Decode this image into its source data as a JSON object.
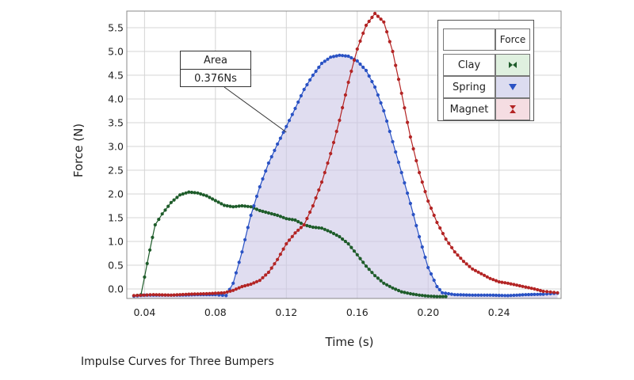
{
  "chart_data": {
    "type": "line",
    "xlabel": "Time (s)",
    "ylabel": "Force (N)",
    "caption": "Impulse Curves for Three Bumpers",
    "xlim": [
      0.03,
      0.275
    ],
    "ylim": [
      -0.2,
      5.85
    ],
    "x_ticks": [
      "0.04",
      "0.08",
      "0.12",
      "0.16",
      "0.20",
      "0.24"
    ],
    "x_tick_values": [
      0.04,
      0.08,
      0.12,
      0.16,
      0.2,
      0.24
    ],
    "y_ticks": [
      "0.0",
      "0.5",
      "1.0",
      "1.5",
      "2.0",
      "2.5",
      "3.0",
      "3.5",
      "4.0",
      "4.5",
      "5.0",
      "5.5"
    ],
    "y_tick_values": [
      0,
      0.5,
      1,
      1.5,
      2,
      2.5,
      3,
      3.5,
      4,
      4.5,
      5,
      5.5
    ],
    "grid": true,
    "legend_position": "top-right",
    "legend_header": "Force",
    "annotation": {
      "label": "Area",
      "value": "0.376Ns",
      "target": [
        0.12,
        3.3
      ]
    },
    "shaded_series": "Spring",
    "series": [
      {
        "name": "Clay",
        "color": "#1e5c2a",
        "legend_fill": "#dff0df",
        "marker": "circle",
        "points": [
          [
            0.034,
            -0.15
          ],
          [
            0.038,
            -0.12
          ],
          [
            0.04,
            0.25
          ],
          [
            0.043,
            0.82
          ],
          [
            0.046,
            1.35
          ],
          [
            0.05,
            1.58
          ],
          [
            0.055,
            1.82
          ],
          [
            0.06,
            1.98
          ],
          [
            0.065,
            2.04
          ],
          [
            0.07,
            2.02
          ],
          [
            0.075,
            1.96
          ],
          [
            0.08,
            1.86
          ],
          [
            0.085,
            1.76
          ],
          [
            0.09,
            1.73
          ],
          [
            0.095,
            1.75
          ],
          [
            0.1,
            1.73
          ],
          [
            0.105,
            1.65
          ],
          [
            0.11,
            1.6
          ],
          [
            0.115,
            1.55
          ],
          [
            0.12,
            1.48
          ],
          [
            0.125,
            1.45
          ],
          [
            0.13,
            1.35
          ],
          [
            0.135,
            1.3
          ],
          [
            0.14,
            1.28
          ],
          [
            0.145,
            1.2
          ],
          [
            0.15,
            1.1
          ],
          [
            0.155,
            0.95
          ],
          [
            0.16,
            0.72
          ],
          [
            0.165,
            0.48
          ],
          [
            0.17,
            0.28
          ],
          [
            0.175,
            0.12
          ],
          [
            0.18,
            0.02
          ],
          [
            0.185,
            -0.06
          ],
          [
            0.19,
            -0.1
          ],
          [
            0.195,
            -0.13
          ],
          [
            0.2,
            -0.15
          ],
          [
            0.205,
            -0.16
          ],
          [
            0.21,
            -0.16
          ]
        ]
      },
      {
        "name": "Spring",
        "color": "#2a52c4",
        "legend_fill": "#dcdcf0",
        "marker": "triangle",
        "points": [
          [
            0.034,
            -0.15
          ],
          [
            0.04,
            -0.13
          ],
          [
            0.05,
            -0.13
          ],
          [
            0.06,
            -0.13
          ],
          [
            0.07,
            -0.12
          ],
          [
            0.08,
            -0.12
          ],
          [
            0.086,
            -0.14
          ],
          [
            0.09,
            0.12
          ],
          [
            0.095,
            0.78
          ],
          [
            0.1,
            1.55
          ],
          [
            0.105,
            2.15
          ],
          [
            0.11,
            2.65
          ],
          [
            0.115,
            3.05
          ],
          [
            0.12,
            3.42
          ],
          [
            0.125,
            3.8
          ],
          [
            0.13,
            4.2
          ],
          [
            0.135,
            4.5
          ],
          [
            0.14,
            4.75
          ],
          [
            0.145,
            4.88
          ],
          [
            0.15,
            4.92
          ],
          [
            0.155,
            4.9
          ],
          [
            0.16,
            4.8
          ],
          [
            0.165,
            4.6
          ],
          [
            0.17,
            4.25
          ],
          [
            0.175,
            3.75
          ],
          [
            0.18,
            3.1
          ],
          [
            0.185,
            2.45
          ],
          [
            0.19,
            1.8
          ],
          [
            0.195,
            1.1
          ],
          [
            0.2,
            0.45
          ],
          [
            0.205,
            0.05
          ],
          [
            0.208,
            -0.08
          ],
          [
            0.215,
            -0.12
          ],
          [
            0.225,
            -0.13
          ],
          [
            0.235,
            -0.13
          ],
          [
            0.245,
            -0.14
          ],
          [
            0.255,
            -0.12
          ],
          [
            0.265,
            -0.11
          ],
          [
            0.273,
            -0.09
          ]
        ]
      },
      {
        "name": "Magnet",
        "color": "#b32424",
        "legend_fill": "#f5dde2",
        "marker": "diamond",
        "points": [
          [
            0.034,
            -0.14
          ],
          [
            0.045,
            -0.12
          ],
          [
            0.055,
            -0.13
          ],
          [
            0.065,
            -0.11
          ],
          [
            0.075,
            -0.1
          ],
          [
            0.085,
            -0.08
          ],
          [
            0.09,
            -0.03
          ],
          [
            0.095,
            0.05
          ],
          [
            0.1,
            0.1
          ],
          [
            0.105,
            0.18
          ],
          [
            0.11,
            0.35
          ],
          [
            0.115,
            0.62
          ],
          [
            0.12,
            0.95
          ],
          [
            0.125,
            1.18
          ],
          [
            0.13,
            1.35
          ],
          [
            0.135,
            1.75
          ],
          [
            0.14,
            2.25
          ],
          [
            0.145,
            2.85
          ],
          [
            0.15,
            3.55
          ],
          [
            0.155,
            4.35
          ],
          [
            0.16,
            5.05
          ],
          [
            0.165,
            5.55
          ],
          [
            0.17,
            5.8
          ],
          [
            0.175,
            5.62
          ],
          [
            0.18,
            5.0
          ],
          [
            0.185,
            4.12
          ],
          [
            0.19,
            3.2
          ],
          [
            0.195,
            2.45
          ],
          [
            0.2,
            1.85
          ],
          [
            0.205,
            1.4
          ],
          [
            0.21,
            1.05
          ],
          [
            0.215,
            0.78
          ],
          [
            0.22,
            0.58
          ],
          [
            0.225,
            0.42
          ],
          [
            0.23,
            0.32
          ],
          [
            0.235,
            0.22
          ],
          [
            0.24,
            0.15
          ],
          [
            0.245,
            0.12
          ],
          [
            0.25,
            0.08
          ],
          [
            0.255,
            0.04
          ],
          [
            0.26,
            0.0
          ],
          [
            0.265,
            -0.05
          ],
          [
            0.273,
            -0.08
          ]
        ]
      }
    ]
  }
}
